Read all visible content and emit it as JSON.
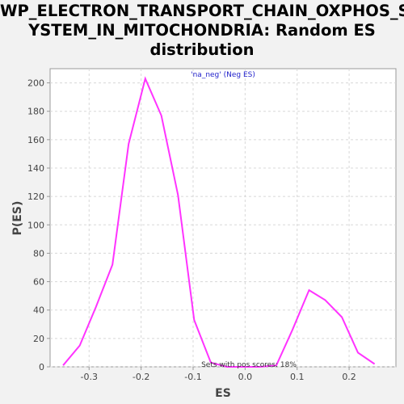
{
  "title_lines": [
    "WP_ELECTRON_TRANSPORT_CHAIN_OXPHOS_S",
    "YSTEM_IN_MITOCHONDRIA: Random ES",
    "distribution"
  ],
  "chart_data": {
    "type": "line",
    "title": "WP_ELECTRON_TRANSPORT_CHAIN_OXPHOS_SYSTEM_IN_MITOCHONDRIA: Random ES distribution",
    "xlabel": "ES",
    "ylabel": "P(ES)",
    "xlim": [
      -0.375,
      0.29
    ],
    "ylim": [
      0,
      210
    ],
    "xticks": [
      -0.3,
      -0.2,
      -0.1,
      0.0,
      0.1,
      0.2
    ],
    "xtick_labels": [
      "-0.3",
      "-0.2",
      "-0.1",
      "0.0",
      "0.1",
      "0.2"
    ],
    "yticks": [
      0,
      20,
      40,
      60,
      80,
      100,
      120,
      140,
      160,
      180,
      200
    ],
    "grid": true,
    "legend_label": "'na_neg' (Neg ES)",
    "annotation": "Sets with pos scores: 18%",
    "line_color": "#ff33ff",
    "series": [
      {
        "x": [
          -0.35,
          -0.318,
          -0.287,
          -0.255,
          -0.224,
          -0.192,
          -0.161,
          -0.129,
          -0.098,
          -0.066,
          -0.035,
          -0.003,
          0.028,
          0.06,
          0.091,
          0.123,
          0.154,
          0.186,
          0.217,
          0.249
        ],
        "values": [
          1,
          15,
          42,
          72,
          157,
          203,
          177,
          121,
          33,
          3,
          0,
          0,
          0,
          1,
          26,
          54,
          47,
          35,
          10,
          2
        ]
      }
    ]
  }
}
